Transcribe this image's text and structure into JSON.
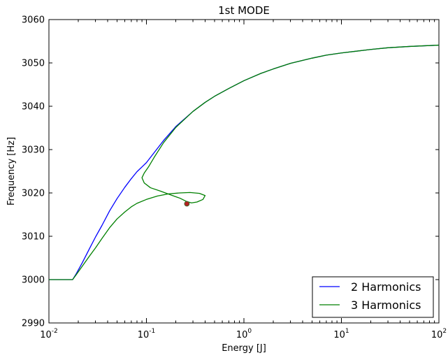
{
  "chart_data": {
    "type": "line",
    "title": "1st MODE",
    "xlabel": "Energy [J]",
    "ylabel": "Frequency [Hz]",
    "xscale": "log",
    "xlim": [
      0.01,
      100
    ],
    "ylim": [
      2990,
      3060
    ],
    "xticks": [
      {
        "value": 0.01,
        "base": "10",
        "exp": "-2"
      },
      {
        "value": 0.1,
        "base": "10",
        "exp": "-1"
      },
      {
        "value": 1,
        "base": "10",
        "exp": "0"
      },
      {
        "value": 10,
        "base": "10",
        "exp": "1"
      },
      {
        "value": 100,
        "base": "10",
        "exp": "2"
      }
    ],
    "yticks": [
      2990,
      3000,
      3010,
      3020,
      3030,
      3040,
      3050,
      3060
    ],
    "grid": false,
    "legend_position": "lower-right",
    "series": [
      {
        "name": "2 Harmonics",
        "color": "#0000ff",
        "points": [
          [
            0.01,
            3000.0
          ],
          [
            0.0175,
            3000.0
          ],
          [
            0.019,
            3001.3
          ],
          [
            0.022,
            3003.9
          ],
          [
            0.026,
            3007.1
          ],
          [
            0.03,
            3009.8
          ],
          [
            0.035,
            3012.5
          ],
          [
            0.042,
            3015.9
          ],
          [
            0.05,
            3018.7
          ],
          [
            0.06,
            3021.3
          ],
          [
            0.07,
            3023.3
          ],
          [
            0.08,
            3024.9
          ],
          [
            0.09,
            3026.0
          ],
          [
            0.1,
            3027.0
          ],
          [
            0.12,
            3029.3
          ],
          [
            0.15,
            3032.1
          ],
          [
            0.2,
            3035.3
          ],
          [
            0.3,
            3038.8
          ],
          [
            0.4,
            3040.9
          ],
          [
            0.5,
            3042.3
          ],
          [
            0.7,
            3044.1
          ],
          [
            1.0,
            3045.9
          ],
          [
            1.5,
            3047.6
          ],
          [
            2.0,
            3048.6
          ],
          [
            3.0,
            3049.9
          ],
          [
            5.0,
            3051.1
          ],
          [
            7.0,
            3051.8
          ],
          [
            10.0,
            3052.3
          ],
          [
            20.0,
            3053.1
          ],
          [
            30.0,
            3053.5
          ],
          [
            50.0,
            3053.8
          ],
          [
            100.0,
            3054.1
          ]
        ]
      },
      {
        "name": "3 Harmonics",
        "color": "#008000",
        "points": [
          [
            0.01,
            3000.0
          ],
          [
            0.0175,
            3000.0
          ],
          [
            0.019,
            3001.1
          ],
          [
            0.022,
            3003.1
          ],
          [
            0.026,
            3005.4
          ],
          [
            0.03,
            3007.3
          ],
          [
            0.035,
            3009.5
          ],
          [
            0.042,
            3012.0
          ],
          [
            0.05,
            3014.0
          ],
          [
            0.06,
            3015.6
          ],
          [
            0.07,
            3016.8
          ],
          [
            0.08,
            3017.6
          ],
          [
            0.1,
            3018.5
          ],
          [
            0.13,
            3019.3
          ],
          [
            0.17,
            3019.8
          ],
          [
            0.22,
            3020.0
          ],
          [
            0.28,
            3020.1
          ],
          [
            0.35,
            3019.9
          ],
          [
            0.4,
            3019.4
          ],
          [
            0.38,
            3018.5
          ],
          [
            0.33,
            3017.9
          ],
          [
            0.29,
            3017.7
          ],
          [
            0.26,
            3018.0
          ],
          [
            0.22,
            3018.8
          ],
          [
            0.18,
            3019.5
          ],
          [
            0.14,
            3020.4
          ],
          [
            0.11,
            3021.2
          ],
          [
            0.095,
            3022.3
          ],
          [
            0.09,
            3023.5
          ],
          [
            0.095,
            3024.6
          ],
          [
            0.105,
            3026.0
          ],
          [
            0.12,
            3028.2
          ],
          [
            0.15,
            3031.6
          ],
          [
            0.2,
            3035.1
          ],
          [
            0.3,
            3038.8
          ],
          [
            0.4,
            3040.9
          ],
          [
            0.5,
            3042.3
          ],
          [
            0.7,
            3044.1
          ],
          [
            1.0,
            3045.9
          ],
          [
            1.5,
            3047.6
          ],
          [
            2.0,
            3048.6
          ],
          [
            3.0,
            3049.9
          ],
          [
            5.0,
            3051.1
          ],
          [
            7.0,
            3051.8
          ],
          [
            10.0,
            3052.3
          ],
          [
            20.0,
            3053.1
          ],
          [
            30.0,
            3053.5
          ],
          [
            50.0,
            3053.8
          ],
          [
            100.0,
            3054.1
          ]
        ]
      }
    ],
    "markers": [
      {
        "x": 0.26,
        "y": 3017.5,
        "color": "#b22222"
      }
    ]
  }
}
